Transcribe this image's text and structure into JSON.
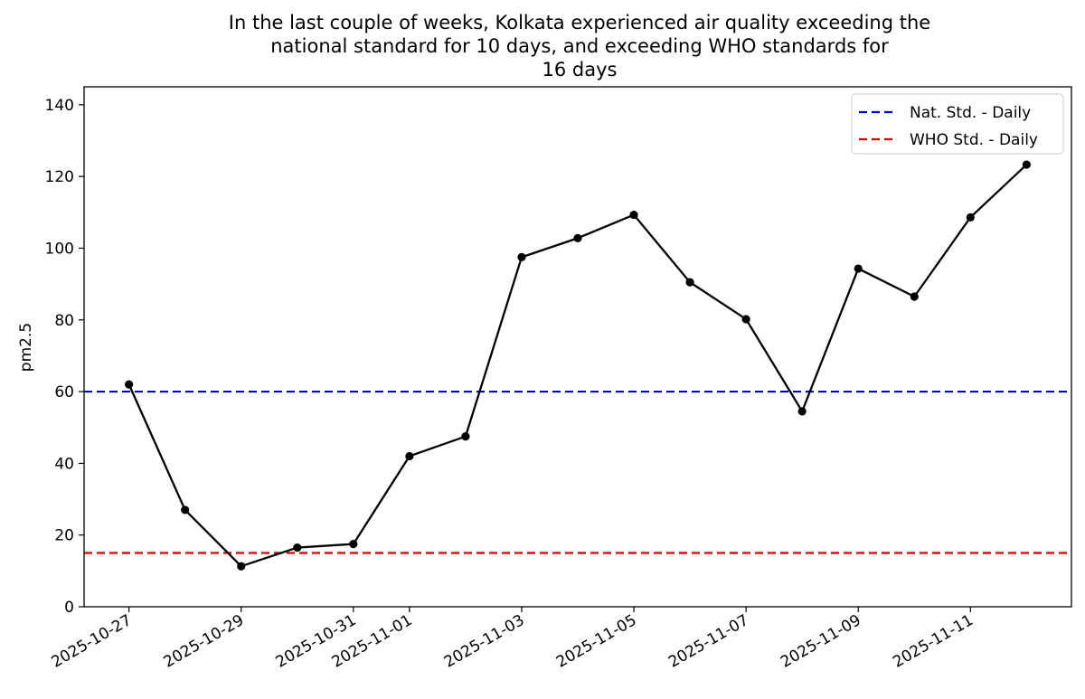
{
  "chart_data": {
    "type": "line",
    "title_lines": [
      "In the last couple of weeks, Kolkata experienced air quality exceeding the",
      "national standard for 10 days, and exceeding WHO standards for",
      "16 days"
    ],
    "xlabel": "",
    "ylabel": "pm2.5",
    "ylim": [
      0,
      145
    ],
    "yticks": [
      0,
      20,
      40,
      60,
      80,
      100,
      120,
      140
    ],
    "x_day_range": [
      -0.8,
      16.8
    ],
    "xtick_days": [
      0,
      2,
      4,
      5,
      7,
      9,
      11,
      13,
      15
    ],
    "xtick_labels": [
      "2025-10-27",
      "2025-10-29",
      "2025-10-31",
      "2025-11-01",
      "2025-11-03",
      "2025-11-05",
      "2025-11-07",
      "2025-11-09",
      "2025-11-11"
    ],
    "series": [
      {
        "name": "pm2.5",
        "color": "#000000",
        "dates": [
          "2025-10-27",
          "2025-10-28",
          "2025-10-29",
          "2025-10-30",
          "2025-10-31",
          "2025-11-01",
          "2025-11-02",
          "2025-11-03",
          "2025-11-04",
          "2025-11-05",
          "2025-11-06",
          "2025-11-07",
          "2025-11-08",
          "2025-11-09",
          "2025-11-10",
          "2025-11-11",
          "2025-11-12"
        ],
        "values": [
          62,
          27,
          11.3,
          16.5,
          17.5,
          42,
          47.5,
          97.5,
          102.8,
          109.3,
          90.5,
          80.2,
          54.5,
          94.3,
          86.5,
          108.6,
          123.3
        ]
      }
    ],
    "reference_lines": [
      {
        "label": "Nat. Std. - Daily",
        "value": 60,
        "color": "#0000cc"
      },
      {
        "label": "WHO Std. - Daily",
        "value": 15,
        "color": "#cc0000"
      }
    ],
    "legend_position": "top-right"
  }
}
